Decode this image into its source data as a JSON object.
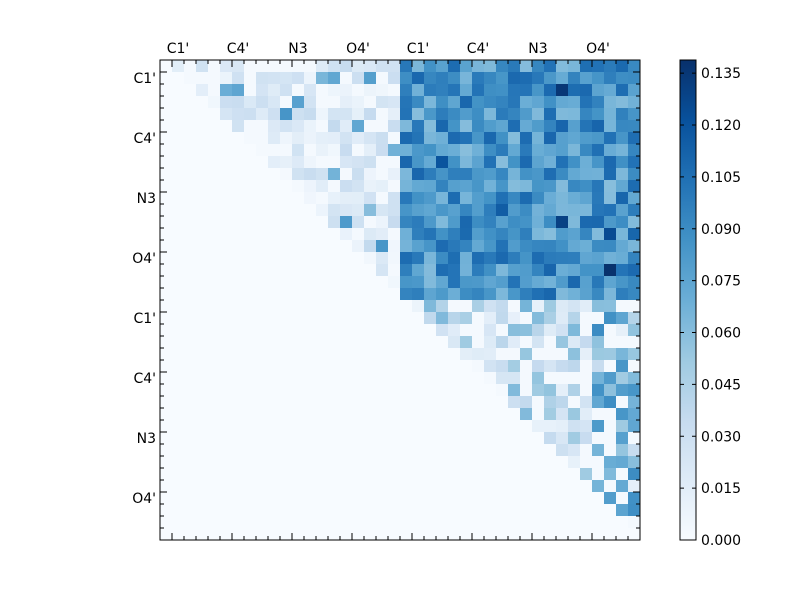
{
  "chart_data": {
    "type": "heatmap",
    "title": "",
    "xlabel": "",
    "ylabel": "",
    "grid": false,
    "n": 40,
    "colormap": "Blues",
    "x_tick_labels": [
      "C1'",
      "C4'",
      "N3",
      "O4'",
      "C1'",
      "C4'",
      "N3",
      "O4'"
    ],
    "y_tick_labels": [
      "C1'",
      "C4'",
      "N3",
      "O4'",
      "C1'",
      "C4'",
      "N3",
      "O4'"
    ],
    "tick_label_indices": [
      1,
      6,
      11,
      16,
      21,
      26,
      31,
      36
    ],
    "colorbar": {
      "range": [
        0.0,
        0.1388
      ],
      "tick_values": [
        0.0,
        0.015,
        0.03,
        0.045,
        0.06,
        0.075,
        0.09,
        0.105,
        0.12,
        0.135
      ],
      "tick_labels": [
        "0.000",
        "0.015",
        "0.030",
        "0.045",
        "0.060",
        "0.075",
        "0.090",
        "0.105",
        "0.120",
        "0.135"
      ]
    },
    "block_means": {
      "intra_block_A": 0.02,
      "inter_block_AB": 0.085,
      "intra_block_B": 0.035
    },
    "notable_cells": [
      {
        "row": 2,
        "col": 33,
        "value": 0.135
      },
      {
        "row": 13,
        "col": 33,
        "value": 0.13
      },
      {
        "row": 17,
        "col": 37,
        "value": 0.138
      },
      {
        "row": 14,
        "col": 37,
        "value": 0.125
      },
      {
        "row": 8,
        "col": 23,
        "value": 0.12
      },
      {
        "row": 12,
        "col": 28,
        "value": 0.115
      }
    ]
  }
}
